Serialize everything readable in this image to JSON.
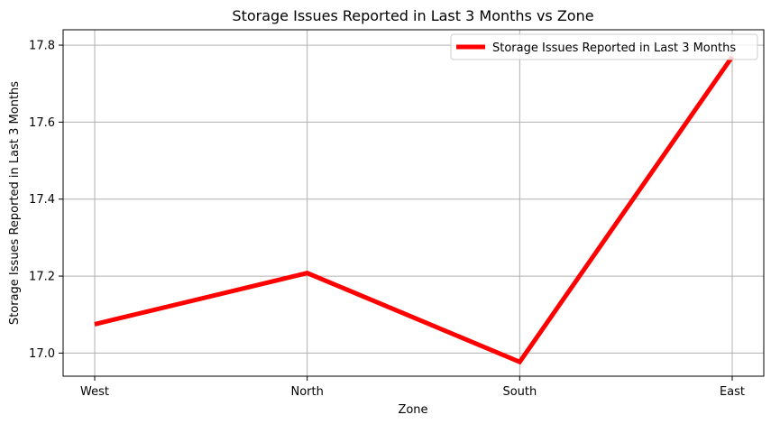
{
  "chart_data": {
    "type": "line",
    "title": "Storage Issues Reported in Last 3 Months vs Zone",
    "xlabel": "Zone",
    "ylabel": "Storage Issues Reported in Last 3 Months",
    "categories": [
      "West",
      "North",
      "South",
      "East"
    ],
    "series": [
      {
        "name": "Storage Issues Reported in Last 3 Months",
        "values": [
          17.075,
          17.208,
          16.977,
          17.77
        ],
        "color": "#ff0000"
      }
    ],
    "ylim": [
      16.94,
      17.84
    ],
    "yticks": [
      17.0,
      17.2,
      17.4,
      17.6,
      17.8
    ],
    "ytick_labels": [
      "17.0",
      "17.2",
      "17.4",
      "17.6",
      "17.8"
    ],
    "grid": true,
    "legend_position": "top-right"
  }
}
